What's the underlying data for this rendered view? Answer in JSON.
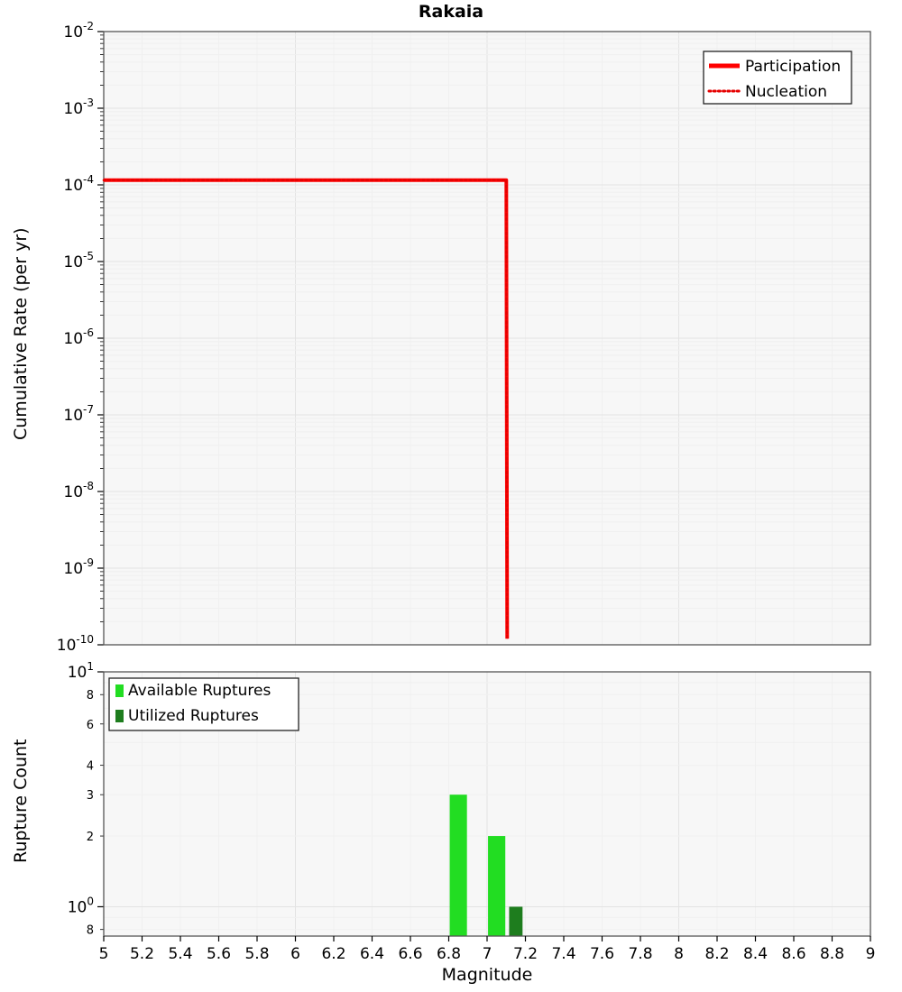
{
  "title": "Rakaia",
  "xlabel": "Magnitude",
  "x_tick_labels": [
    "5",
    "5.2",
    "5.4",
    "5.6",
    "5.8",
    "6",
    "6.2",
    "6.4",
    "6.6",
    "6.8",
    "7",
    "7.2",
    "7.4",
    "7.6",
    "7.8",
    "8",
    "8.2",
    "8.4",
    "8.6",
    "8.8",
    "9"
  ],
  "colors": {
    "participation": "#ff0000",
    "nucleation": "#e60000",
    "available": "#22dd22",
    "utilized": "#1e7d1e",
    "plot_bg": "#f7f7f7",
    "grid_major": "#e3e3e3",
    "grid_minor": "#f0f0f0",
    "frame": "#555555"
  },
  "chart_data": [
    {
      "type": "line",
      "panel": "top",
      "title": "Rakaia",
      "ylabel": "Cumulative Rate (per yr)",
      "yscale": "log",
      "xscale": "linear",
      "xlim": [
        5,
        9
      ],
      "ylim": [
        1e-10,
        0.01
      ],
      "y_tick_exps": [
        -2,
        -3,
        -4,
        -5,
        -6,
        -7,
        -8,
        -9,
        -10
      ],
      "grid": true,
      "series": [
        {
          "name": "Participation",
          "style": "solid",
          "color": "#ff0000",
          "points": [
            [
              5.0,
              0.000115
            ],
            [
              7.1,
              0.000115
            ],
            [
              7.105,
              1.2e-10
            ]
          ]
        },
        {
          "name": "Nucleation",
          "style": "dotted",
          "color": "#e60000",
          "points": [
            [
              5.0,
              0.000115
            ],
            [
              7.1,
              0.000115
            ],
            [
              7.105,
              1.2e-10
            ]
          ]
        }
      ],
      "legend": {
        "position": "top-right",
        "entries": [
          "Participation",
          "Nucleation"
        ]
      }
    },
    {
      "type": "bar",
      "panel": "bottom",
      "ylabel": "Rupture Count",
      "yscale": "log",
      "xscale": "linear",
      "xlim": [
        5,
        9
      ],
      "ylim": [
        0.75,
        10
      ],
      "y_ticks": [
        {
          "value": 10,
          "exp": 1
        },
        {
          "value": 8,
          "label": "8"
        },
        {
          "value": 6,
          "label": "6"
        },
        {
          "value": 4,
          "label": "4"
        },
        {
          "value": 3,
          "label": "3"
        },
        {
          "value": 2,
          "label": "2"
        },
        {
          "value": 1,
          "exp": 0
        },
        {
          "value": 0.8,
          "label": "8"
        }
      ],
      "grid": true,
      "series": [
        {
          "name": "Available Ruptures",
          "color": "#22dd22",
          "bar_width": 0.09,
          "bars": [
            {
              "magnitude": 6.85,
              "count": 3
            },
            {
              "magnitude": 7.05,
              "count": 2
            }
          ]
        },
        {
          "name": "Utilized Ruptures",
          "color": "#1e7d1e",
          "bar_width": 0.07,
          "bars": [
            {
              "magnitude": 7.15,
              "count": 1
            }
          ]
        }
      ],
      "legend": {
        "position": "top-left",
        "entries": [
          "Available Ruptures",
          "Utilized Ruptures"
        ]
      }
    }
  ]
}
